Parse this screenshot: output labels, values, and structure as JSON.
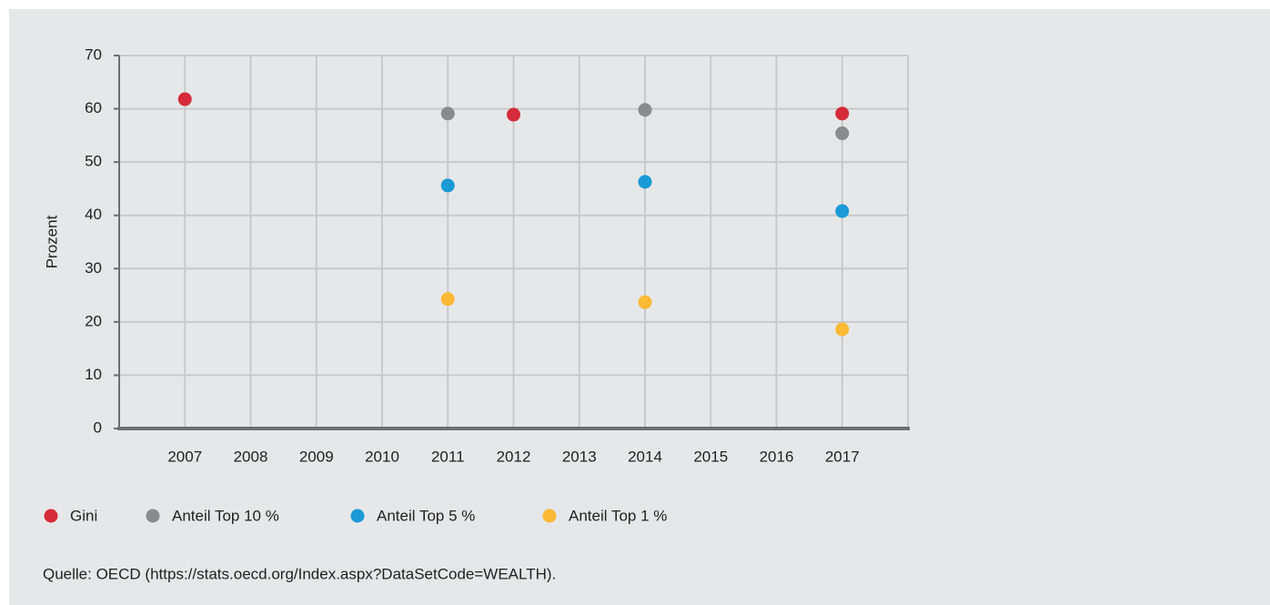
{
  "chart_data": {
    "type": "scatter",
    "y_label": "Prozent",
    "categories": [
      "2007",
      "2008",
      "2009",
      "2010",
      "2011",
      "2012",
      "2013",
      "2014",
      "2015",
      "2016",
      "2017"
    ],
    "series": [
      {
        "name": "Gini",
        "color": "#d52b3a",
        "values": [
          61.8,
          null,
          null,
          null,
          null,
          58.9,
          null,
          null,
          null,
          null,
          59.1
        ]
      },
      {
        "name": "Anteil Top 10 %",
        "color": "#8a8b8d",
        "values": [
          null,
          null,
          null,
          null,
          59.1,
          null,
          null,
          59.8,
          null,
          null,
          55.4
        ]
      },
      {
        "name": "Anteil Top 5 %",
        "color": "#1b9ad6",
        "values": [
          null,
          null,
          null,
          null,
          45.6,
          null,
          null,
          46.3,
          null,
          null,
          40.8
        ]
      },
      {
        "name": "Anteil Top 1 %",
        "color": "#fbb935",
        "values": [
          null,
          null,
          null,
          null,
          24.3,
          null,
          null,
          23.7,
          null,
          null,
          18.6
        ]
      }
    ],
    "ylim": [
      0,
      70
    ],
    "yticks": [
      0,
      10,
      20,
      30,
      40,
      50,
      60,
      70
    ],
    "grid": true,
    "source": "Quelle: OECD (https://stats.oecd.org/Index.aspx?DataSetCode=WEALTH)."
  }
}
